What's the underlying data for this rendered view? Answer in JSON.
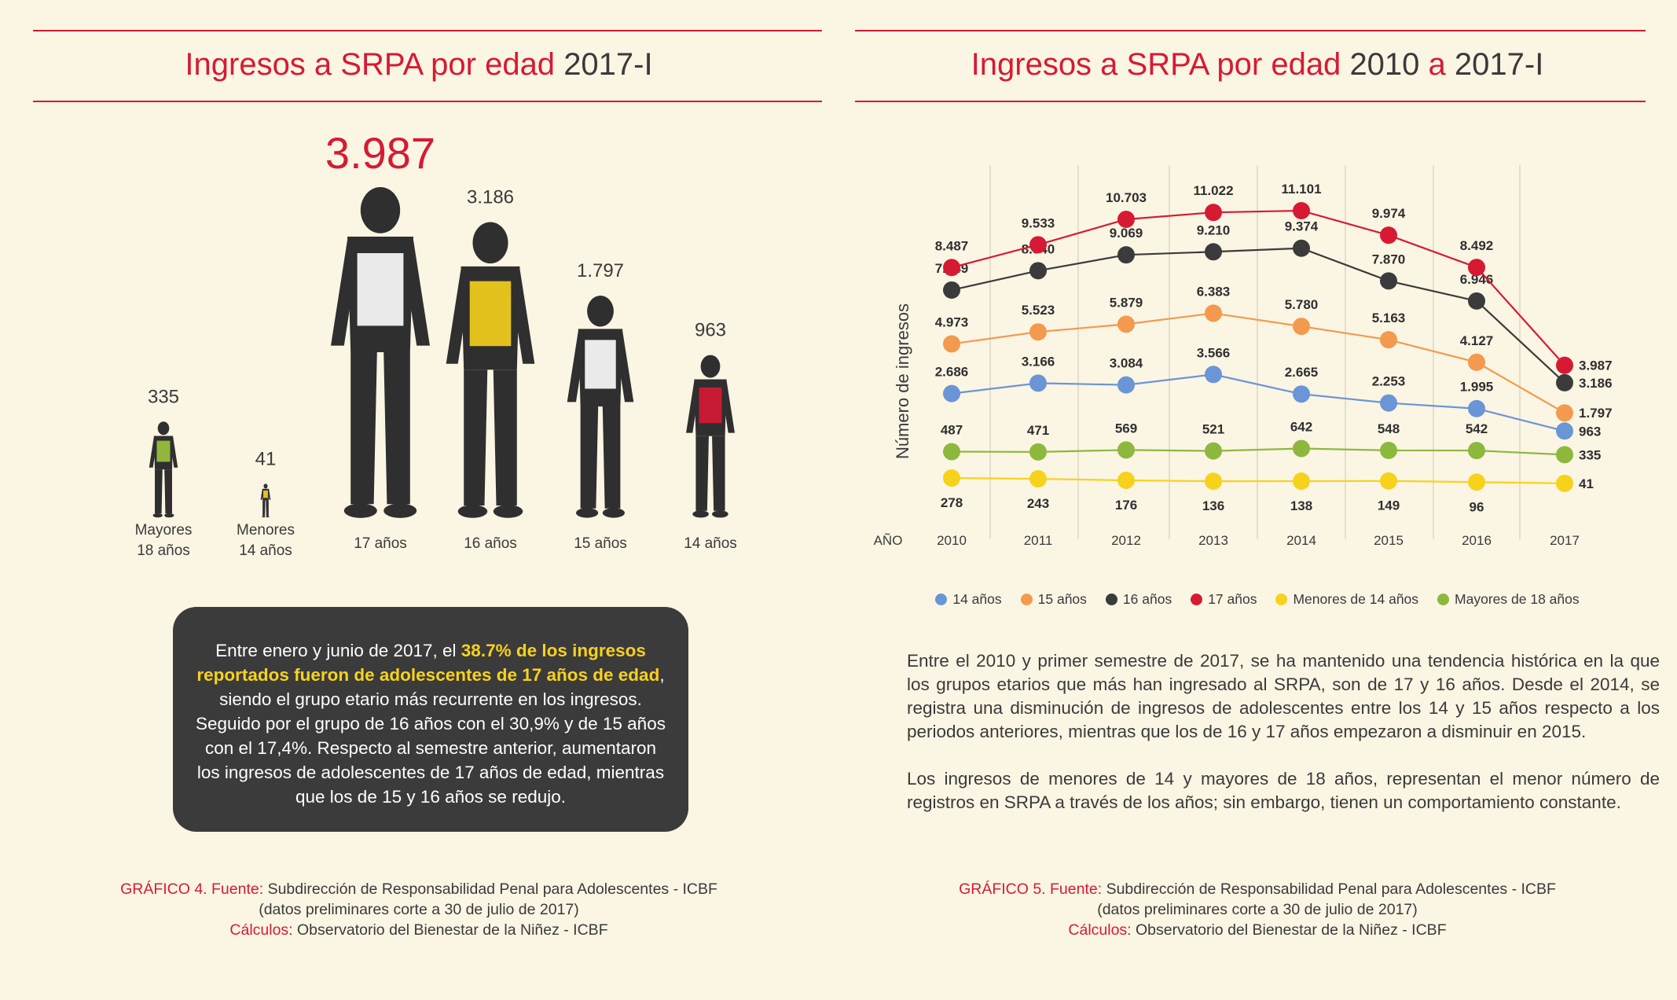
{
  "left": {
    "title_red": "Ingresos a SRPA por edad",
    "title_dark": "2017-I",
    "chart_data": {
      "type": "bar",
      "title": "Ingresos a SRPA por edad 2017-I",
      "categories": [
        {
          "line1": "Mayores",
          "line2": "18 años"
        },
        {
          "line1": "Menores",
          "line2": "14 años"
        },
        {
          "line1": "17 años",
          "line2": ""
        },
        {
          "line1": "16 años",
          "line2": ""
        },
        {
          "line1": "15 años",
          "line2": ""
        },
        {
          "line1": "14 años",
          "line2": ""
        }
      ],
      "values": [
        335,
        41,
        3987,
        3186,
        1797,
        963
      ],
      "value_labels": [
        "335",
        "41",
        "3.987",
        "3.186",
        "1.797",
        "963"
      ],
      "highlight_color": "#D71A33",
      "accent_colors": [
        "#9BC53D",
        "#F7D21C",
        "#ffffff",
        "#F7D21C",
        "#ffffff",
        "#D71A33"
      ]
    },
    "note": {
      "before": "Entre enero y junio de 2017, el ",
      "highlight": "38.7% de los ingresos reportados fueron de adolescentes de 17 años de edad",
      "after": ", siendo el grupo etario más recurrente en los ingresos. Seguido por el grupo de 16 años con el 30,9% y de 15 años con el 17,4%. Respecto al semestre anterior, aumentaron los ingresos de adolescentes de 17 años de edad, mientras que los de 15 y 16 años se redujo."
    },
    "source": {
      "label1": "GRÁFICO 4. Fuente:",
      "text1": "Subdirección de Responsabilidad Penal para Adolescentes - ICBF",
      "text2": "(datos preliminares corte a 30 de julio de 2017)",
      "label3": "Cálculos:",
      "text3": "Observatorio del Bienestar de la Niñez - ICBF"
    }
  },
  "right": {
    "title_red": "Ingresos a SRPA por edad",
    "title_dark1": "2010",
    "title_mid": "a",
    "title_dark2": "2017-I",
    "chart_data": {
      "type": "line",
      "title": "Ingresos a SRPA por edad 2010 a 2017-I",
      "ylabel": "Número de ingresos",
      "xlabel": "AÑO",
      "x": [
        "2010",
        "2011",
        "2012",
        "2013",
        "2014",
        "2015",
        "2016",
        "2017"
      ],
      "legend_position": "bottom",
      "series": [
        {
          "name": "14 años",
          "color": "#6A95D6",
          "values": [
            2686,
            3166,
            3084,
            3566,
            2665,
            2253,
            1995,
            963
          ],
          "labels": [
            "2.686",
            "3.166",
            "3.084",
            "3.566",
            "2.665",
            "2.253",
            "1.995",
            "963"
          ]
        },
        {
          "name": "15 años",
          "color": "#F39A4E",
          "values": [
            4973,
            5523,
            5879,
            6383,
            5780,
            5163,
            4127,
            1797
          ],
          "labels": [
            "4.973",
            "5.523",
            "5.879",
            "6.383",
            "5.780",
            "5.163",
            "4.127",
            "1.797"
          ]
        },
        {
          "name": "16 años",
          "color": "#3b3b3b",
          "values": [
            7449,
            8340,
            9069,
            9210,
            9374,
            7870,
            6946,
            3186
          ],
          "labels": [
            "7.449",
            "8.340",
            "9.069",
            "9.210",
            "9.374",
            "7.870",
            "6.946",
            "3.186"
          ]
        },
        {
          "name": "17 años",
          "color": "#D71A33",
          "values": [
            8487,
            9533,
            10703,
            11022,
            11101,
            9974,
            8492,
            3987
          ],
          "labels": [
            "8.487",
            "9.533",
            "10.703",
            "11.022",
            "11.101",
            "9.974",
            "8.492",
            "3.987"
          ]
        },
        {
          "name": "Menores de 14 años",
          "color": "#F7D21C",
          "values": [
            278,
            243,
            176,
            136,
            138,
            149,
            96,
            41
          ],
          "labels": [
            "278",
            "243",
            "176",
            "136",
            "138",
            "149",
            "96",
            "41"
          ]
        },
        {
          "name": "Mayores de 18 años",
          "color": "#8DB83E",
          "values": [
            487,
            471,
            569,
            521,
            642,
            548,
            542,
            335
          ],
          "labels": [
            "487",
            "471",
            "569",
            "521",
            "642",
            "548",
            "542",
            "335"
          ]
        }
      ]
    },
    "text": {
      "p1": "Entre el 2010 y primer semestre de 2017, se ha mantenido una tendencia histórica en la que los grupos etarios que más han ingresado al SRPA, son de 17 y 16 años. Desde el 2014, se registra una disminución de ingresos de adolescentes entre los 14 y 15 años respecto a los periodos anteriores, mientras que los de 16 y 17 años empezaron a disminuir en 2015.",
      "p2": "Los ingresos de menores de 14 y mayores de 18 años, representan el menor número de registros en SRPA a través de los años; sin embargo, tienen un comportamiento constante."
    },
    "source": {
      "label1": "GRÁFICO 5. Fuente:",
      "text1": "Subdirección de Responsabilidad Penal para Adolescentes - ICBF",
      "text2": "(datos preliminares corte a 30 de julio de 2017)",
      "label3": "Cálculos:",
      "text3": "Observatorio del Bienestar de la Niñez - ICBF"
    }
  }
}
